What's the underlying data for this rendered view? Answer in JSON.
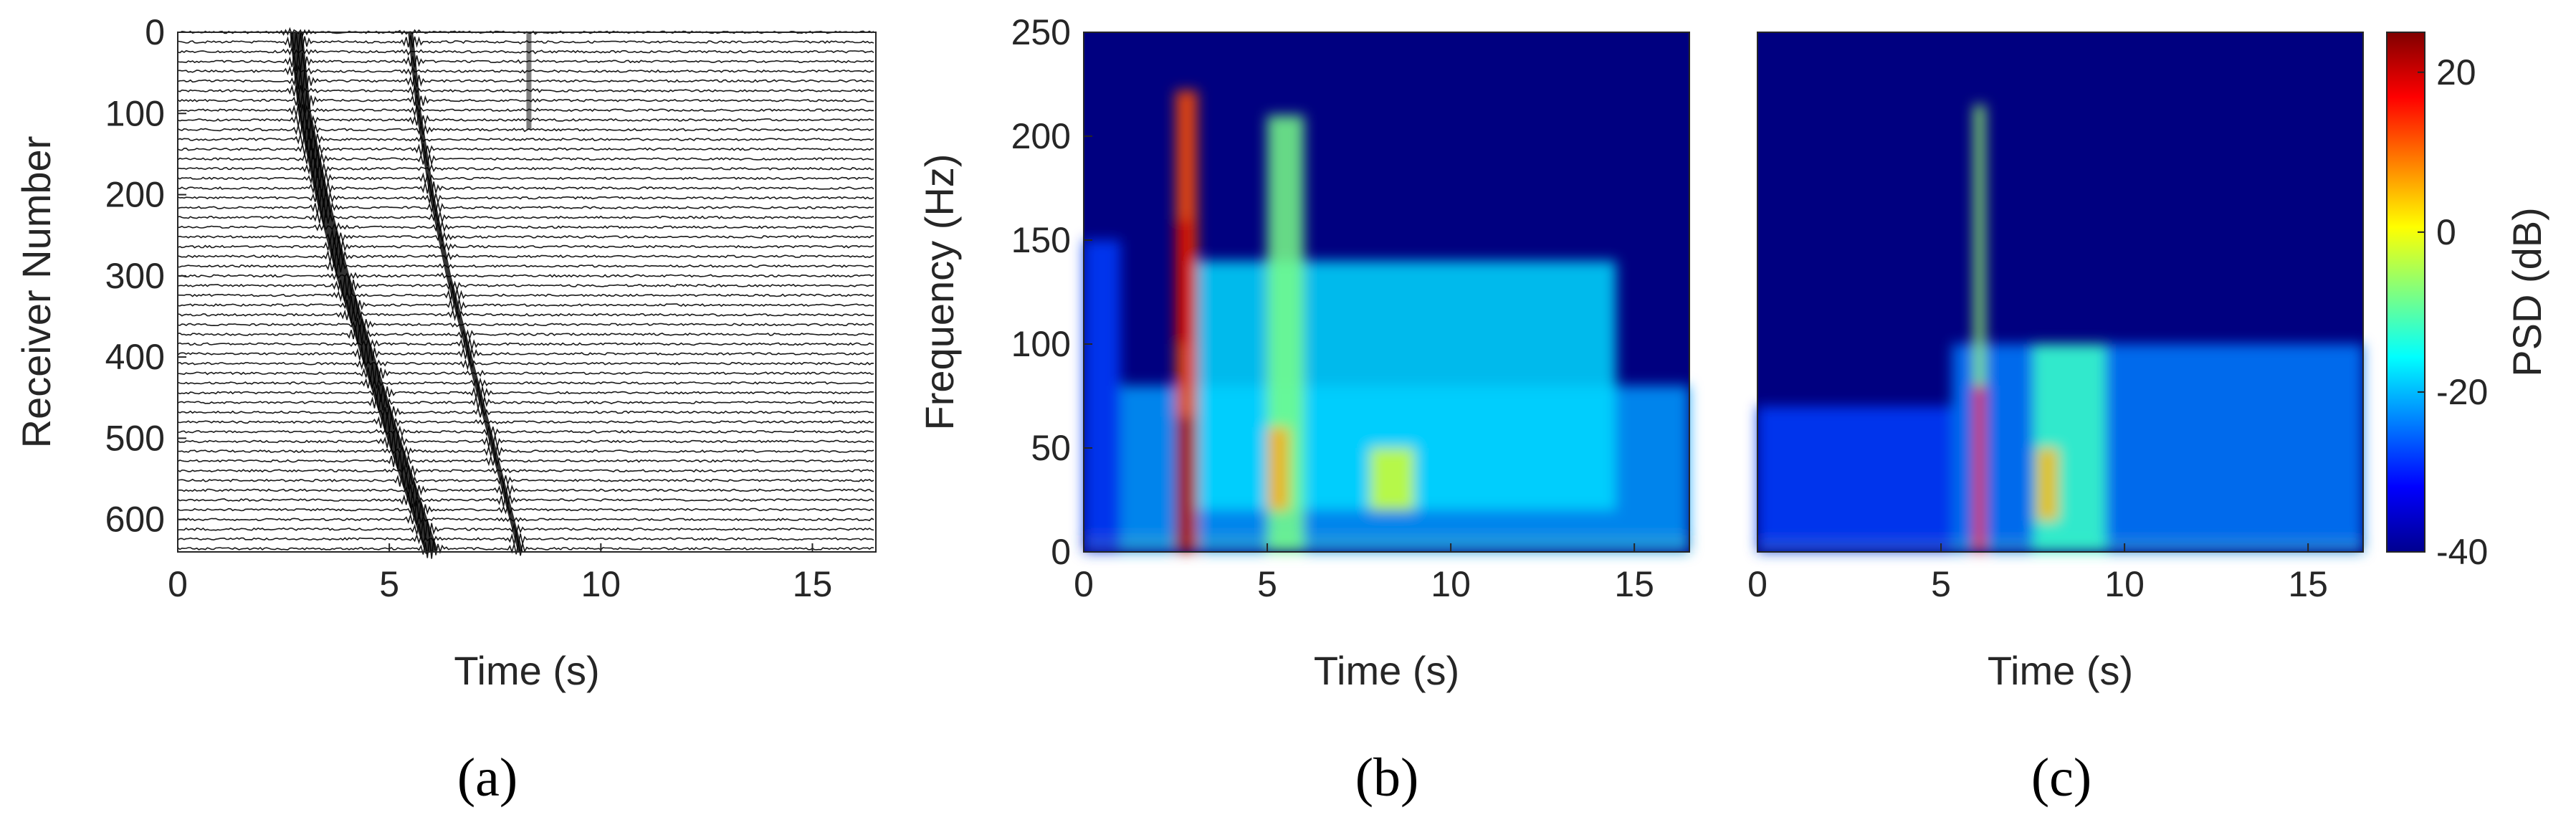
{
  "chart_data": [
    {
      "panel": "a",
      "type": "line",
      "caption": "(a)",
      "xlabel": "Time (s)",
      "ylabel": "Receiver Number",
      "xlim": [
        0,
        16.5
      ],
      "ylim": [
        0,
        640
      ],
      "y_reversed": true,
      "xticks": [
        0,
        5,
        10,
        15
      ],
      "yticks": [
        0,
        100,
        200,
        300,
        400,
        500,
        600
      ],
      "arrivals": [
        {
          "name": "",
          "points": [
            [
              2.8,
              0
            ],
            [
              3.0,
              100
            ],
            [
              3.4,
              200
            ],
            [
              3.9,
              300
            ],
            [
              4.5,
              400
            ],
            [
              5.1,
              500
            ],
            [
              6.0,
              640
            ]
          ]
        },
        {
          "name": "",
          "points": [
            [
              5.5,
              0
            ],
            [
              5.7,
              100
            ],
            [
              6.0,
              200
            ],
            [
              6.4,
              300
            ],
            [
              6.9,
              400
            ],
            [
              7.4,
              500
            ],
            [
              8.1,
              640
            ]
          ]
        },
        {
          "name": "",
          "points": [
            [
              8.3,
              0
            ],
            [
              8.3,
              120
            ]
          ]
        }
      ]
    },
    {
      "panel": "b",
      "type": "heatmap",
      "caption": "(b)",
      "xlabel": "Time (s)",
      "ylabel": "Frequency (Hz)",
      "xlim": [
        0,
        16.5
      ],
      "ylim": [
        0,
        250
      ],
      "xticks": [
        0,
        5,
        10,
        15
      ],
      "yticks": [
        0,
        50,
        100,
        150,
        200,
        250
      ],
      "colormap": "jet",
      "regions": [
        {
          "t": [
            0,
            16.5
          ],
          "f": [
            0,
            8
          ],
          "psd": 6
        },
        {
          "t": [
            0,
            1.0
          ],
          "f": [
            0,
            150
          ],
          "psd": -28
        },
        {
          "t": [
            1.0,
            16.5
          ],
          "f": [
            0,
            80
          ],
          "psd": -22
        },
        {
          "t": [
            3.0,
            14.5
          ],
          "f": [
            20,
            140
          ],
          "psd": -18
        },
        {
          "t": [
            2.5,
            3.1
          ],
          "f": [
            0,
            222
          ],
          "psd": 12
        },
        {
          "t": [
            2.5,
            3.0
          ],
          "f": [
            0,
            65
          ],
          "psd": 24
        },
        {
          "t": [
            2.5,
            3.0
          ],
          "f": [
            100,
            160
          ],
          "psd": 20
        },
        {
          "t": [
            5.0,
            6.0
          ],
          "f": [
            0,
            210
          ],
          "psd": -8
        },
        {
          "t": [
            5.0,
            5.6
          ],
          "f": [
            20,
            60
          ],
          "psd": 6
        },
        {
          "t": [
            7.8,
            9.0
          ],
          "f": [
            20,
            50
          ],
          "psd": -2
        }
      ]
    },
    {
      "panel": "c",
      "type": "heatmap",
      "caption": "(c)",
      "xlabel": "Time (s)",
      "ylabel": "",
      "xlim": [
        0,
        16.5
      ],
      "ylim": [
        0,
        250
      ],
      "xticks": [
        0,
        5,
        10,
        15
      ],
      "colormap": "jet",
      "colorbar": {
        "label": "PSD (dB)",
        "range": [
          -40,
          25
        ],
        "ticks": [
          -40,
          -20,
          0,
          20
        ]
      },
      "regions": [
        {
          "t": [
            0,
            16.5
          ],
          "f": [
            0,
            6
          ],
          "psd": 2
        },
        {
          "t": [
            0,
            5.3
          ],
          "f": [
            0,
            70
          ],
          "psd": -28
        },
        {
          "t": [
            5.3,
            16.5
          ],
          "f": [
            0,
            100
          ],
          "psd": -24
        },
        {
          "t": [
            5.9,
            6.2
          ],
          "f": [
            0,
            215
          ],
          "psd": -6
        },
        {
          "t": [
            5.9,
            6.2
          ],
          "f": [
            0,
            80
          ],
          "psd": 18
        },
        {
          "t": [
            7.5,
            9.5
          ],
          "f": [
            0,
            100
          ],
          "psd": -12
        },
        {
          "t": [
            7.6,
            8.2
          ],
          "f": [
            15,
            50
          ],
          "psd": 5
        }
      ]
    }
  ]
}
